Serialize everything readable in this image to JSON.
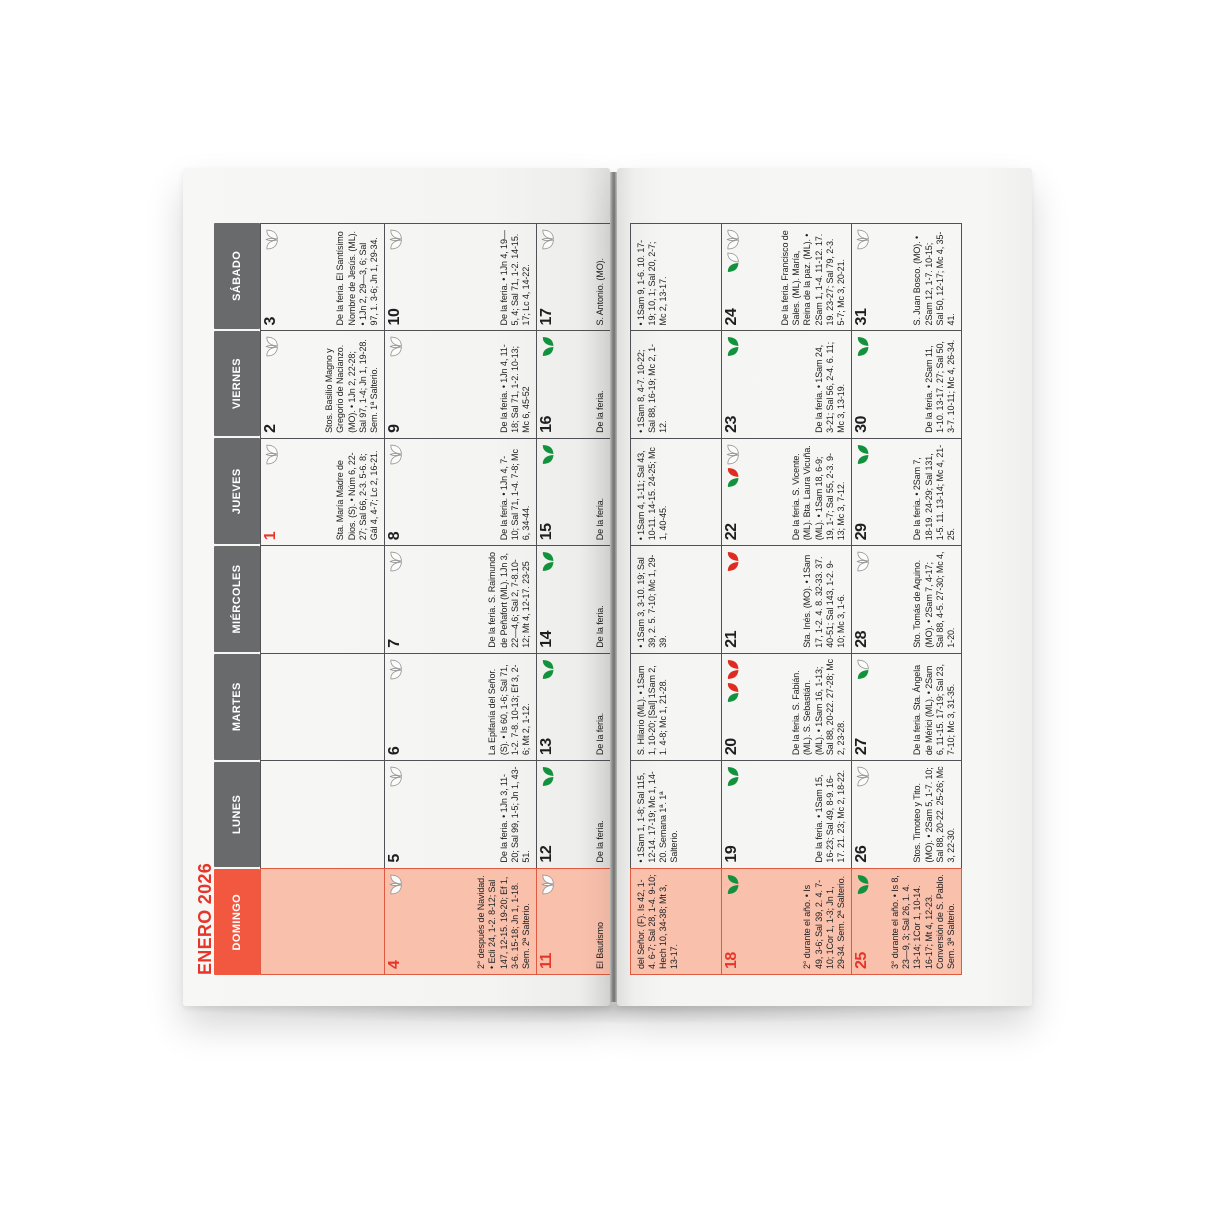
{
  "calendar": {
    "month_title": "ENERO 2026",
    "weekday_headers": [
      "DOMINGO",
      "LUNES",
      "MARTES",
      "MIÉRCOLES",
      "JUEVES",
      "VIERNES",
      "SÁBADO"
    ],
    "weeks": [
      [
        null,
        null,
        null,
        null,
        {
          "day": "1",
          "num_color": "red",
          "icons": [
            "chalice-outline-icon"
          ],
          "text": "Sta. María Madre de Dios. (S). • Núm 6, 22-27; Sal 66, 2-3. 5-6. 8; Gál 4, 4-7; Lc 2, 16-21."
        },
        {
          "day": "2",
          "num_color": "black",
          "icons": [
            "chalice-outline-icon"
          ],
          "text": "Stos. Basilio Magno y Gregorio de Nacianzo. (MO). • 1Jn 2, 22-28; Sal 97, 1-4; Jn 1, 19-28. Sem. 1ª Salterio."
        },
        {
          "day": "3",
          "num_color": "black",
          "icons": [
            "chalice-outline-icon"
          ],
          "text": "De la feria. El Santísimo Nombre de Jesús. (ML). • 1Jn 2, 29—3, 6; Sal 97, 1. 3-6; Jn 1, 29-34."
        }
      ],
      [
        {
          "day": "4",
          "num_color": "red",
          "icons": [
            "chalice-outline-icon"
          ],
          "text": "2° después de Navidad. • Ecli 24, 1-2. 8-12; Sal 147, 12-15. 19-20; Ef 1, 3-6. 15-18; Jn 1, 1-18. Sem. 2ª Salterio."
        },
        {
          "day": "5",
          "num_color": "black",
          "icons": [
            "chalice-outline-icon"
          ],
          "text": "De la feria. • 1Jn 3, 11-20; Sal 99, 1-5; Jn 1, 43-51."
        },
        {
          "day": "6",
          "num_color": "black",
          "icons": [
            "chalice-outline-icon"
          ],
          "text": "La Epifanía del Señor. (S). • Is 60, 1-6; Sal 71, 1-2. 7-8. 10-13; Ef 3, 2-6; Mt 2, 1-12."
        },
        {
          "day": "7",
          "num_color": "black",
          "icons": [
            "chalice-outline-icon"
          ],
          "text": "De la feria. S. Raimundo de Peñafort (ML). 1Jn 3, 22—4,6; Sal 2, 7-8.10-12; Mt 4, 12-17. 23-25"
        },
        {
          "day": "8",
          "num_color": "black",
          "icons": [
            "chalice-outline-icon"
          ],
          "text": "De la feria. • 1Jn 4, 7-10; Sal 71, 1-4. 7-8; Mc 6, 34-44."
        },
        {
          "day": "9",
          "num_color": "black",
          "icons": [
            "chalice-outline-icon"
          ],
          "text": "De la feria. • 1Jn 4, 11-18; Sal 71, 1-2. 10-13; Mc 6, 45-52"
        },
        {
          "day": "10",
          "num_color": "black",
          "icons": [
            "chalice-outline-icon"
          ],
          "text": "De la feria. • 1Jn 4, 19—5, 4; Sal 71, 1-2. 14-15. 17; Lc 4, 14-22."
        }
      ],
      [
        {
          "day": "11",
          "num_color": "red",
          "icons": [
            "chalice-outline-icon"
          ],
          "text": "El Bautismo"
        },
        {
          "day": "12",
          "num_color": "black",
          "icons": [
            "chalice-green-icon"
          ],
          "text": "De la feria."
        },
        {
          "day": "13",
          "num_color": "black",
          "icons": [
            "chalice-green-icon"
          ],
          "text": "De la feria."
        },
        {
          "day": "14",
          "num_color": "black",
          "icons": [
            "chalice-green-icon"
          ],
          "text": "De la feria."
        },
        {
          "day": "15",
          "num_color": "black",
          "icons": [
            "chalice-green-icon"
          ],
          "text": "De la feria."
        },
        {
          "day": "16",
          "num_color": "black",
          "icons": [
            "chalice-green-icon"
          ],
          "text": "De la feria."
        },
        {
          "day": "17",
          "num_color": "black",
          "icons": [
            "chalice-outline-icon"
          ],
          "text": "S. Antonio. (MO)."
        }
      ],
      [
        {
          "day": "18",
          "num_color": "red",
          "icons": [
            "chalice-green-icon"
          ],
          "text": "2° durante el año. • Is 49, 3-6; Sal 39, 2. 4. 7-10; 1Cor 1, 1-3; Jn 1, 29-34. Sem. 2ª Salterio."
        },
        {
          "day": "19",
          "num_color": "black",
          "icons": [
            "chalice-green-icon"
          ],
          "text": "De la feria. • 1Sam 15, 16-23; Sal 49, 8-9. 16-17. 21. 23; Mc 2, 18-22."
        },
        {
          "day": "20",
          "num_color": "black",
          "icons": [
            "chalice-green-red-icon",
            "chalice-red-icon"
          ],
          "text": "De la feria. S. Fabián. (ML). S. Sebastián. (ML). • 1Sam 16, 1-13; Sal 88, 20-22. 27-28; Mc 2, 23-28."
        },
        {
          "day": "21",
          "num_color": "black",
          "icons": [
            "chalice-red-icon"
          ],
          "text": "Sta. Inés. (MO). • 1Sam 17, 1-2. 4. 8. 32-33. 37. 40-51; Sal 143, 1-2. 9-10; Mc 3, 1-6."
        },
        {
          "day": "22",
          "num_color": "black",
          "icons": [
            "chalice-green-red-icon",
            "chalice-outline-icon"
          ],
          "text": "De la feria. S. Vicente. (ML). Bta. Laura Vicuña. (ML). • 1Sam 18, 6-9; 19, 1-7; Sal 55, 2-3. 9-13; Mc 3, 7-12."
        },
        {
          "day": "23",
          "num_color": "black",
          "icons": [
            "chalice-green-icon"
          ],
          "text": "De la feria. • 1Sam 24, 3-21; Sal 56, 2-4. 6. 11; Mc 3, 13-19."
        },
        {
          "day": "24",
          "num_color": "black",
          "icons": [
            "chalice-green-white-icon",
            "chalice-outline-icon"
          ],
          "text": "De la feria. Francisco de Sales. (ML). María, Reina de la paz. (ML). • 2Sam 1, 1-4. 11-12. 17. 19. 23-27; Sal 79, 2-3. 5-7; Mc 3, 20-21."
        }
      ],
      [
        {
          "day": "25",
          "num_color": "red",
          "icons": [
            "chalice-green-icon"
          ],
          "text": "3° durante el año. • Is 8, 23—9, 3; Sal 26, 1. 4. 13-14; 1Cor 1, 10-14. 16-17; Mt 4, 12-23. Conversión de S. Pablo. Sem. 3ª Salterio."
        },
        {
          "day": "26",
          "num_color": "black",
          "icons": [
            "chalice-outline-icon"
          ],
          "text": "Stos. Timoteo y Tito. (MO). • 2Sam 5, 1-7. 10; Sal 88, 20-22. 25-26; Mc 3, 22-30."
        },
        {
          "day": "27",
          "num_color": "black",
          "icons": [
            "chalice-green-white-icon"
          ],
          "text": "De la feria. Sta. Ángela de Mérici (ML). • 2Sam 6, 11-15. 17-19; Sal 23, 7-10; Mc 3, 31-35."
        },
        {
          "day": "28",
          "num_color": "black",
          "icons": [
            "chalice-outline-icon"
          ],
          "text": "Sto. Tomás de Aquino. (MO). • 2Sam 7, 4-17; Sal 88, 4-5. 27-30; Mc 4, 1-20."
        },
        {
          "day": "29",
          "num_color": "black",
          "icons": [
            "chalice-green-icon"
          ],
          "text": "De la feria. • 2Sam 7, 18-19. 24-29; Sal 131, 1-5. 11. 13-14; Mc 4, 21-25."
        },
        {
          "day": "30",
          "num_color": "black",
          "icons": [
            "chalice-green-icon"
          ],
          "text": "De la feria. • 2Sam 11, 1-10. 13-17. 27; Sal 50, 3-7. 10-11; Mc 4, 26-34."
        },
        {
          "day": "31",
          "num_color": "black",
          "icons": [
            "chalice-outline-icon"
          ],
          "text": "S. Juan Bosco. (MO). • 2Sam 12, 1-7. 10-15; Sal 50, 12-17; Mc 4, 35-41."
        }
      ]
    ],
    "continuation_row": [
      "del Señor. (F). Is 42, 1-4. 6-7; Sal 28, 1-4. 9-10; Hech 10, 34-38; Mt 3, 13-17.",
      "• 1Sam 1, 1-8; Sal 115, 12-14. 17-19; Mc 1, 14-20. Semana 1ª. 1ª Salterio.",
      "S. Hilario (ML). • 1Sam 1, 10-20; [Sal] 1Sam 2, 1. 4-8; Mc 1, 21-28.",
      "• 1Sam 3, 3-10. 19; Sal 39, 2. 5. 7-10; Mc 1, 29-39.",
      "• 1Sam 4, 1-11; Sal 43, 10-11. 14-15. 24-25; Mc 1, 40-45.",
      "• 1Sam 8, 4-7. 10-22; Sal 88, 16-19; Mc 2, 1-12.",
      "• 1Sam 9, 1-6. 10. 17-19; 10, 1; Sal 20, 2-7; Mc 2, 13-17."
    ]
  },
  "colors": {
    "accent_red": "#e73529",
    "domingo_header_bg": "#f25840",
    "salmon": "#f9c0ac",
    "salmon_line": "#e05a41",
    "header_gray": "#696a6c",
    "grid_line": "#515155",
    "green": "#13923e",
    "icon_red": "#df2b20",
    "icon_outline_gray": "#97979a",
    "text": "#202022"
  }
}
